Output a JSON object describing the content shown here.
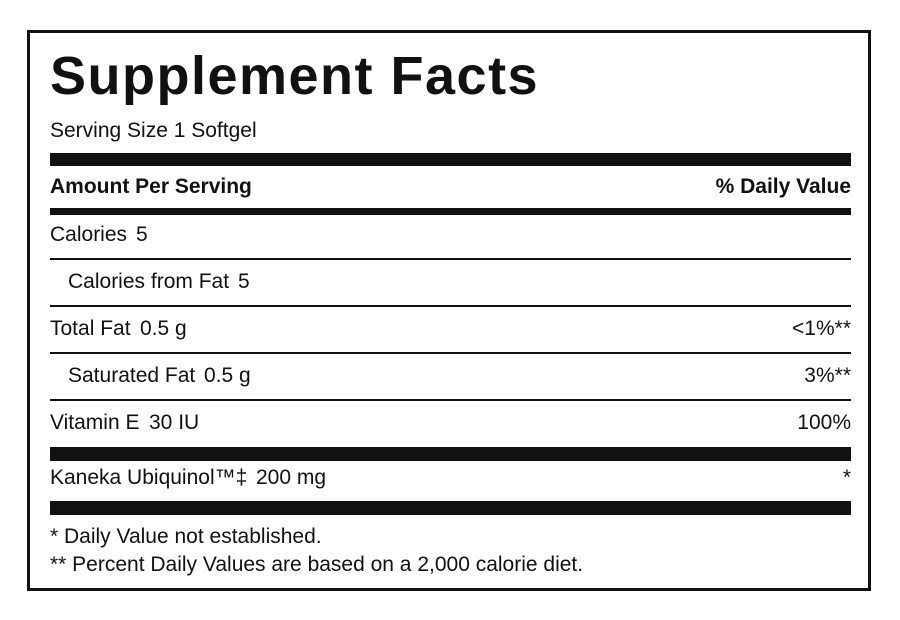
{
  "title": "Supplement Facts",
  "serving_size": "Serving Size 1 Softgel",
  "header": {
    "amount": "Amount Per Serving",
    "daily_value": "% Daily Value"
  },
  "rows": [
    {
      "label": "Calories",
      "amount": "5"
    },
    {
      "label": "Calories from Fat",
      "amount": "5"
    },
    {
      "label": "Total Fat",
      "amount": "0.5 g",
      "daily_value": "<1%**"
    },
    {
      "label": "Saturated Fat",
      "amount": "0.5 g",
      "daily_value": "3%**"
    },
    {
      "label": "Vitamin E",
      "amount": "30 IU",
      "daily_value": "100%"
    },
    {
      "label": "Kaneka Ubiquinol™‡",
      "amount": "200 mg",
      "daily_value": "*"
    }
  ],
  "footnotes": [
    "* Daily Value not established.",
    "** Percent Daily Values are based on a 2,000 calorie diet."
  ]
}
